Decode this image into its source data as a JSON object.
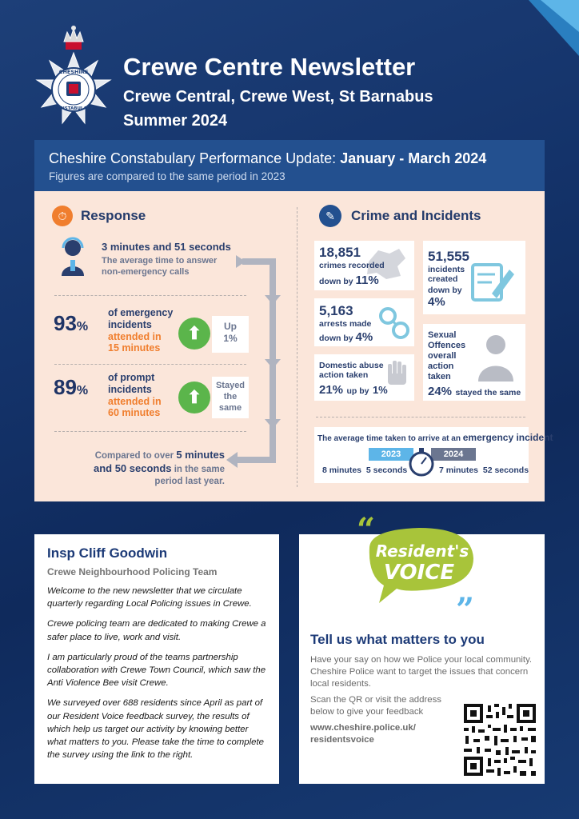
{
  "header": {
    "title": "Crewe Centre Newsletter",
    "subtitle": "Crewe Central, Crewe West, St Barnabus",
    "season": "Summer 2024",
    "badge_text_top": "CHESHIRE",
    "badge_text_bottom": "CONSTABULARY"
  },
  "performance": {
    "heading_prefix": "Cheshire Constabulary Performance Update:",
    "heading_period": "January - March 2024",
    "note": "Figures are compared to the same period in 2023"
  },
  "response": {
    "title": "Response",
    "answer_time": "3 minutes and 51 seconds",
    "answer_desc": "The average time to answer non-emergency calls",
    "emergency": {
      "pct": "93",
      "pct_sign": "%",
      "line1": "of emergency",
      "line2": "incidents",
      "line3": "attended in",
      "line4": "15 minutes",
      "change_label": "Up",
      "change_value": "1%"
    },
    "prompt": {
      "pct": "89",
      "pct_sign": "%",
      "line1": "of prompt",
      "line2": "incidents",
      "line3": "attended in",
      "line4": "60 minutes",
      "change_l1": "Stayed",
      "change_l2": "the",
      "change_l3": "same"
    },
    "compare_pre": "Compared to over",
    "compare_bold1": "5 minutes",
    "compare_bold2": "and 50 seconds",
    "compare_post": "in the same",
    "compare_end": "period last year."
  },
  "crime": {
    "title": "Crime and Incidents",
    "recorded": {
      "num": "18,851",
      "label": "crimes recorded",
      "change_pre": "down by",
      "change": "11%"
    },
    "incidents": {
      "num": "51,555",
      "label1": "incidents",
      "label2": "created",
      "change_pre": "down by",
      "change": "4%"
    },
    "arrests": {
      "num": "5,163",
      "label": "arrests made",
      "change_pre": "down by",
      "change": "4%"
    },
    "sexual": {
      "l1": "Sexual",
      "l2": "Offences",
      "l3": "overall",
      "l4": "action",
      "l5": "taken",
      "pct": "24%",
      "change": "stayed the same"
    },
    "domestic": {
      "l1": "Domestic abuse",
      "l2": "action taken",
      "pct": "21%",
      "change_pre": "up by",
      "change": "1%"
    },
    "arrive_pre": "The average time taken to arrive at an",
    "arrive_bold": "emergency incident",
    "year_a": "2023",
    "year_b": "2024",
    "time_a": "8 minutes  5 seconds",
    "time_b": "7 minutes  52 seconds"
  },
  "inspector": {
    "name": "Insp Cliff Goodwin",
    "team": "Crewe Neighbourhood Policing Team",
    "paragraphs": [
      "Welcome to the new newsletter that we circulate quarterly regarding Local Policing issues in Crewe.",
      "Crewe policing team are dedicated to making Crewe a safer place to live, work and visit.",
      "I am particularly proud of the  teams partnership collaboration with Crewe Town Council, which saw the Anti Violence Bee visit Crewe.",
      "We surveyed over 688 residents since April as part of our Resident Voice feedback survey, the results of which help us target our activity by knowing better what matters to you. Please take the time to complete the survey using the link to the right."
    ]
  },
  "residents_voice": {
    "logo_l1": "Resident's",
    "logo_l2": "VOICE",
    "title": "Tell us what matters to you",
    "text1": "Have your say on how we Police your local community. Cheshire Police want to target the issues that concern local residents.",
    "text2": "Scan the QR or visit the address below to give your feedback",
    "link_l1": "www.cheshire.police.uk/",
    "link_l2": "residentsvoice"
  },
  "colors": {
    "navy": "#1f3466",
    "orange": "#f07e2e",
    "green": "#5bb54b",
    "lime": "#a8c43a",
    "panel": "#fbe6da",
    "header_blue": "#23508f"
  }
}
